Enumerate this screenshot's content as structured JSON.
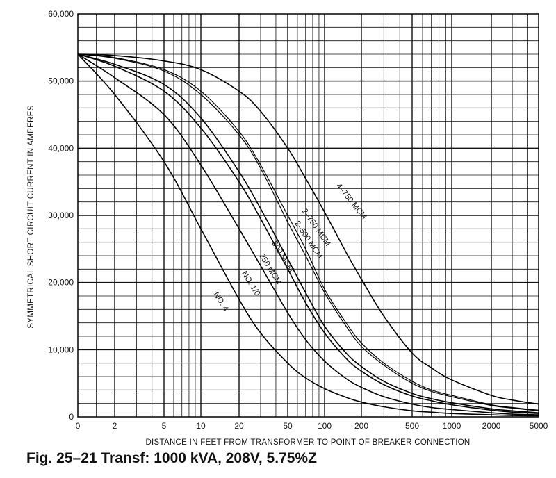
{
  "caption": "Fig. 25–21 Transf: 1000 kVA, 208V, 5.75%Z",
  "chart_data": {
    "type": "line",
    "xlabel": "DISTANCE IN FEET FROM TRANSFORMER TO POINT OF BREAKER CONNECTION",
    "ylabel": "SYMMETRICAL SHORT CIRCUIT CURRENT IN AMPERES",
    "x_scale": "log-like",
    "x_ticks": [
      "0",
      "2",
      "5",
      "10",
      "20",
      "50",
      "100",
      "200",
      "500",
      "1000",
      "2000",
      "5000"
    ],
    "x_tick_values": [
      0,
      2,
      5,
      10,
      20,
      50,
      100,
      200,
      500,
      1000,
      2000,
      5000
    ],
    "y_ticks": [
      "0",
      "10,000",
      "20,000",
      "30,000",
      "40,000",
      "50,000",
      "60,000"
    ],
    "ylim": [
      0,
      60000
    ],
    "grid": true,
    "series": [
      {
        "name": "4–750 MCM",
        "x": [
          0,
          2,
          5,
          10,
          20,
          30,
          50,
          70,
          100,
          150,
          200,
          300,
          500,
          700,
          1000,
          2000,
          3000,
          5000
        ],
        "y": [
          54000,
          53800,
          53000,
          51700,
          48500,
          45500,
          40000,
          35500,
          30500,
          24500,
          20500,
          15000,
          9500,
          7300,
          5500,
          3200,
          2500,
          1900
        ]
      },
      {
        "name": "2–750 MCM",
        "x": [
          0,
          2,
          5,
          10,
          20,
          30,
          50,
          70,
          100,
          150,
          200,
          300,
          500,
          700,
          1000,
          2000,
          3000,
          5000
        ],
        "y": [
          54000,
          53500,
          51700,
          48500,
          42500,
          37500,
          30000,
          25000,
          19000,
          14000,
          11000,
          8000,
          5300,
          4000,
          3200,
          1800,
          1400,
          1000
        ]
      },
      {
        "name": "2–500 MCM",
        "x": [
          0,
          2,
          5,
          10,
          20,
          30,
          50,
          70,
          100,
          150,
          200,
          300,
          500,
          700,
          1000,
          2000,
          3000,
          5000
        ],
        "y": [
          54000,
          53400,
          51500,
          48000,
          42000,
          37000,
          29000,
          24000,
          18500,
          13500,
          10500,
          7700,
          5000,
          3800,
          3000,
          1700,
          1300,
          900
        ]
      },
      {
        "name": "500 MCM",
        "x": [
          0,
          2,
          5,
          10,
          20,
          30,
          50,
          70,
          100,
          150,
          200,
          300,
          500,
          700,
          1000,
          2000,
          3000,
          5000
        ],
        "y": [
          54000,
          52500,
          49500,
          44500,
          36500,
          31000,
          23500,
          18500,
          13500,
          9500,
          7500,
          5300,
          3500,
          2700,
          2100,
          1200,
          900,
          600
        ]
      },
      {
        "name": "250 MCM",
        "x": [
          0,
          2,
          5,
          10,
          20,
          30,
          50,
          70,
          100,
          150,
          200,
          300,
          500,
          700,
          1000,
          2000,
          3000,
          5000
        ],
        "y": [
          54000,
          52200,
          48500,
          43000,
          35000,
          29500,
          22000,
          17000,
          12500,
          8700,
          6800,
          4800,
          3100,
          2400,
          1800,
          1000,
          700,
          500
        ]
      },
      {
        "name": "NO. 1/0",
        "x": [
          0,
          2,
          5,
          10,
          20,
          30,
          50,
          70,
          100,
          150,
          200,
          300,
          500,
          700,
          1000,
          2000,
          3000,
          5000
        ],
        "y": [
          54000,
          50500,
          45000,
          37500,
          28000,
          22500,
          15500,
          11500,
          8300,
          5700,
          4400,
          3000,
          1900,
          1400,
          1100,
          600,
          400,
          300
        ]
      },
      {
        "name": "NO. 4",
        "x": [
          0,
          2,
          5,
          10,
          20,
          30,
          50,
          70,
          100,
          150,
          200,
          300,
          500,
          700,
          1000,
          2000,
          3000,
          5000
        ],
        "y": [
          54000,
          48000,
          38000,
          28000,
          17500,
          12500,
          8000,
          5800,
          4200,
          2900,
          2200,
          1500,
          900,
          700,
          500,
          300,
          200,
          150
        ]
      }
    ]
  }
}
